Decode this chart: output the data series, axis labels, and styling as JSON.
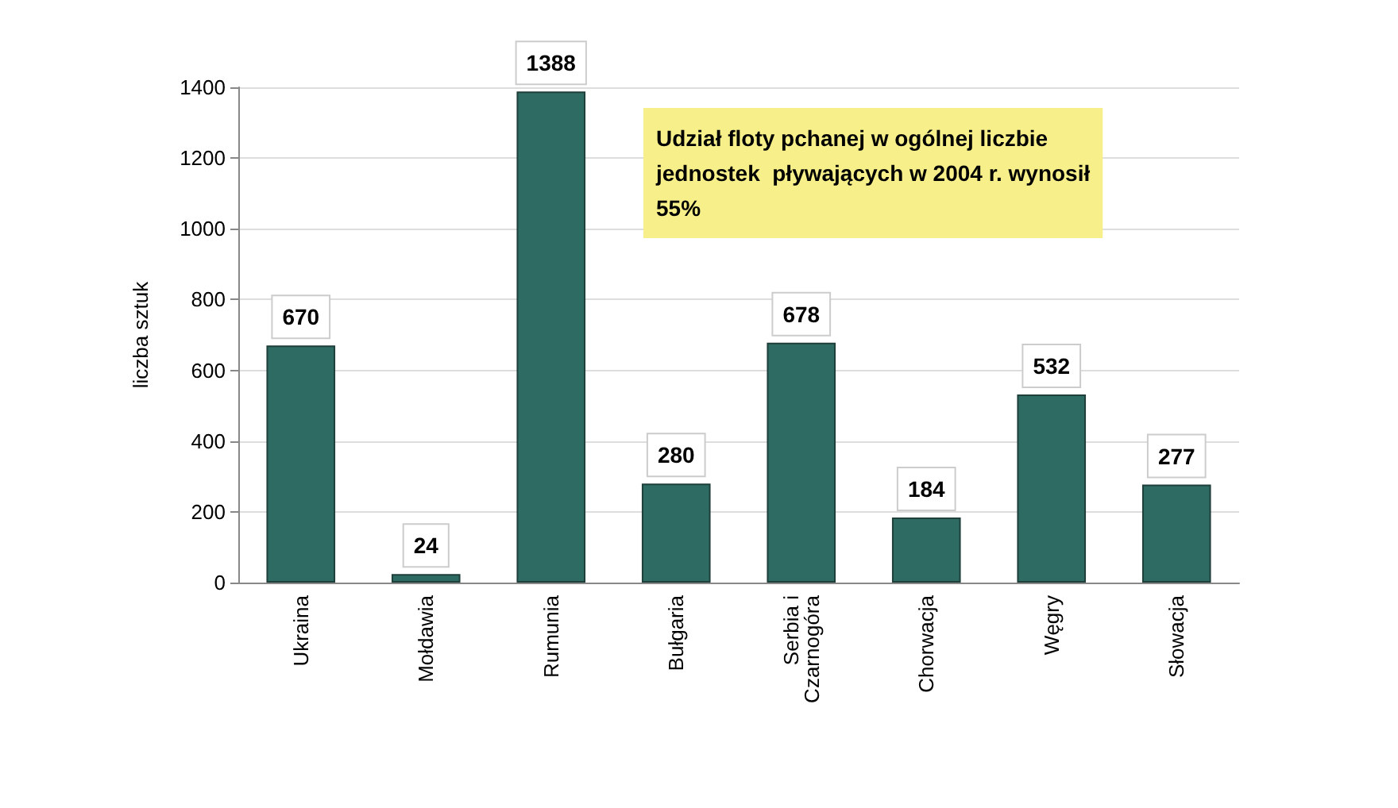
{
  "chart_data": {
    "type": "bar",
    "ylabel": "liczba sztuk",
    "categories": [
      "Ukraina",
      "Mołdawia",
      "Rumunia",
      "Bułgaria",
      "Serbia i Czarnogóra",
      "Chorwacja",
      "Węgry",
      "Słowacja"
    ],
    "values": [
      670,
      24,
      1388,
      280,
      678,
      184,
      532,
      277
    ],
    "color": "#2e6b63",
    "ylim": [
      0,
      1400
    ],
    "yticks": [
      0,
      200,
      400,
      600,
      800,
      1000,
      1200,
      1400
    ],
    "grid": "y",
    "data_labels": true,
    "annotations": [
      "Udział floty pchanej w ogólnej liczbie jednostek  pływających w 2004 r. wynosił 55%"
    ]
  }
}
